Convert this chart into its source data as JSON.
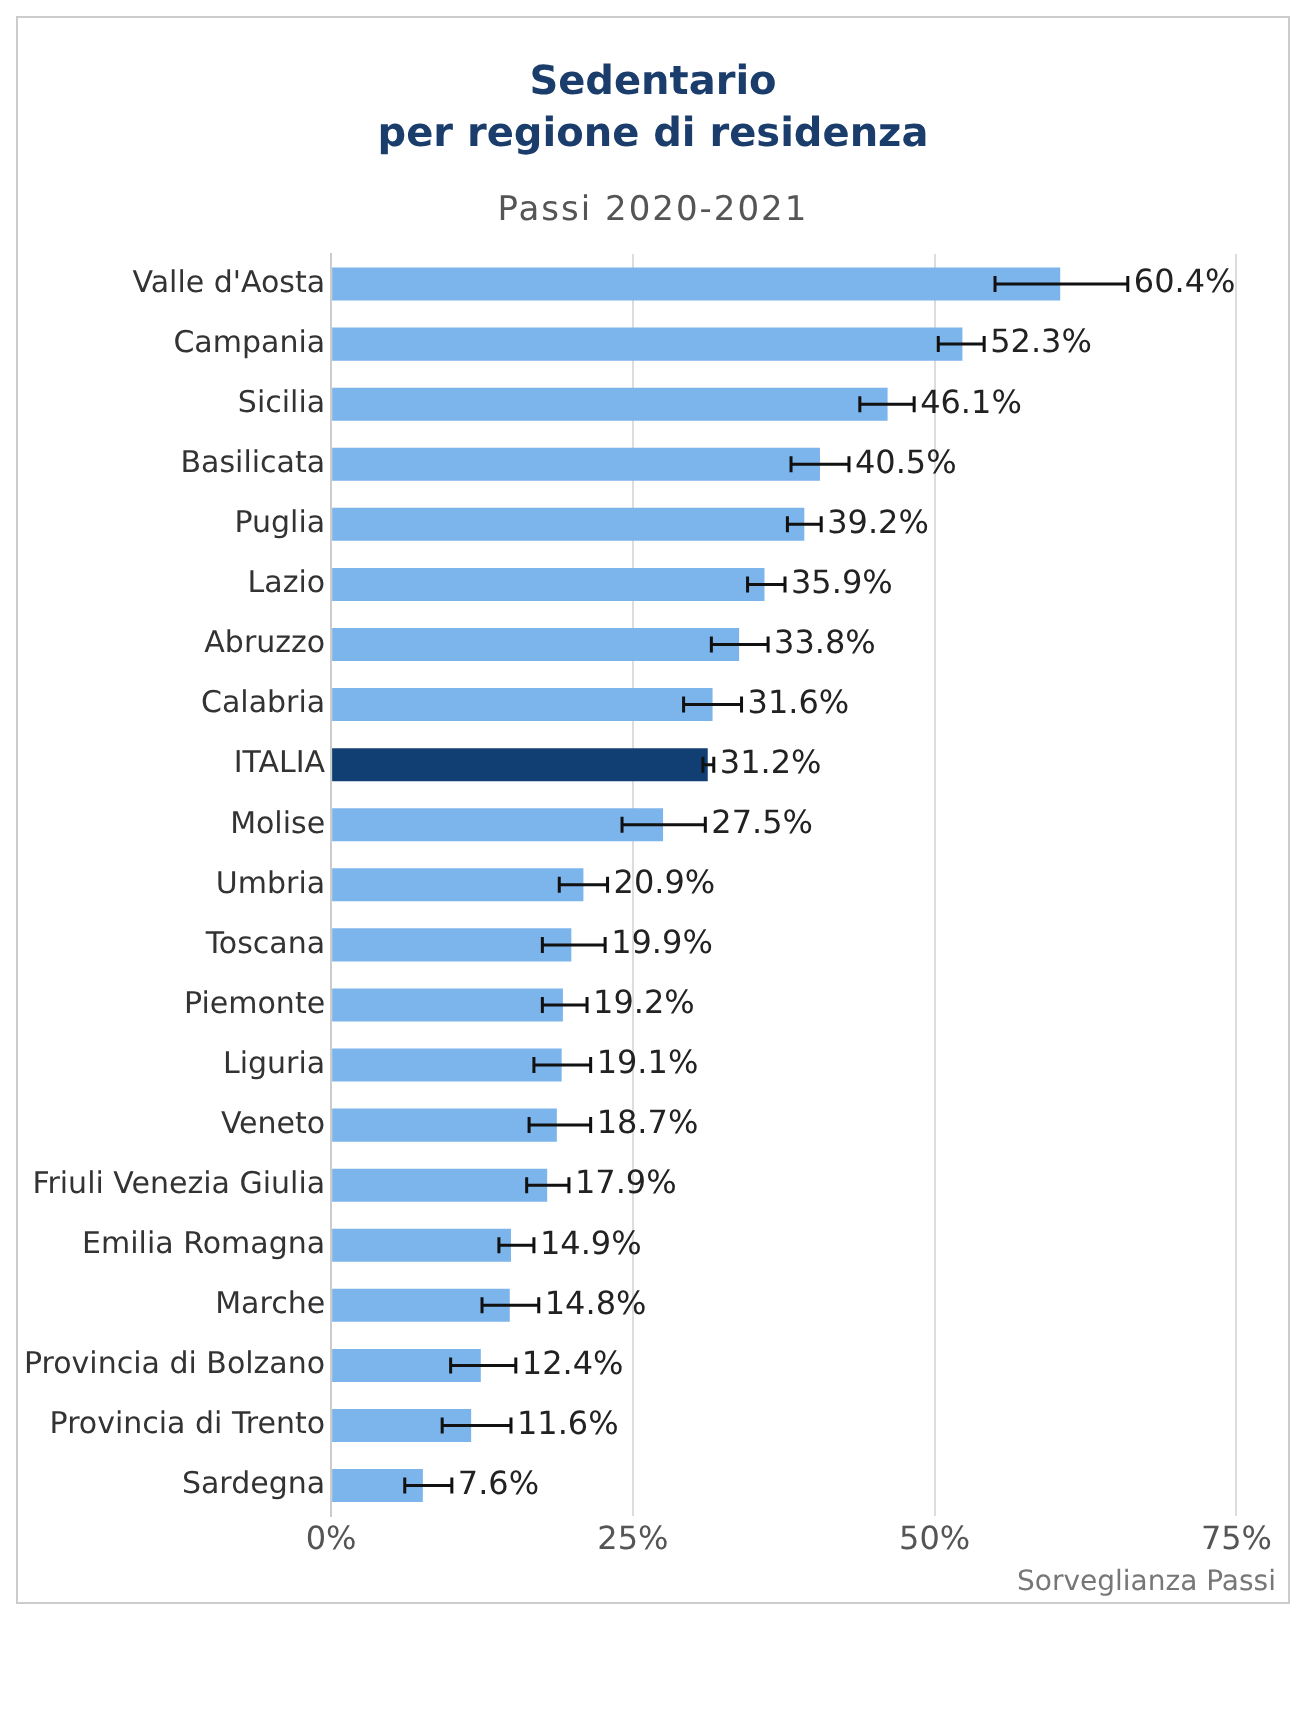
{
  "chart_data": {
    "type": "bar",
    "orientation": "horizontal",
    "title": "Sedentario\nper regione di residenza",
    "subtitle": "Passi 2020-2021",
    "categories": [
      "Valle d'Aosta",
      "Campania",
      "Sicilia",
      "Basilicata",
      "Puglia",
      "Lazio",
      "Abruzzo",
      "Calabria",
      "ITALIA",
      "Molise",
      "Umbria",
      "Toscana",
      "Piemonte",
      "Liguria",
      "Veneto",
      "Friuli Venezia Giulia",
      "Emilia Romagna",
      "Marche",
      "Provincia di Bolzano",
      "Provincia di Trento",
      "Sardegna"
    ],
    "values": [
      60.4,
      52.3,
      46.1,
      40.5,
      39.2,
      35.9,
      33.8,
      31.6,
      31.2,
      27.5,
      20.9,
      19.9,
      19.2,
      19.1,
      18.7,
      17.9,
      14.9,
      14.8,
      12.4,
      11.6,
      7.6
    ],
    "colors": [
      "#7cb5ec",
      "#7cb5ec",
      "#7cb5ec",
      "#7cb5ec",
      "#7cb5ec",
      "#7cb5ec",
      "#7cb5ec",
      "#7cb5ec",
      "#123f73",
      "#7cb5ec",
      "#7cb5ec",
      "#7cb5ec",
      "#7cb5ec",
      "#7cb5ec",
      "#7cb5ec",
      "#7cb5ec",
      "#7cb5ec",
      "#7cb5ec",
      "#7cb5ec",
      "#7cb5ec",
      "#7cb5ec"
    ],
    "errors": [
      [
        55,
        66
      ],
      [
        50.3,
        54.1
      ],
      [
        43.8,
        48.3
      ],
      [
        38.1,
        42.9
      ],
      [
        37.8,
        40.6
      ],
      [
        34.5,
        37.6
      ],
      [
        31.5,
        36.2
      ],
      [
        29.2,
        34
      ],
      [
        30.8,
        31.7
      ],
      [
        24.1,
        31
      ],
      [
        18.9,
        22.9
      ],
      [
        17.5,
        22.7
      ],
      [
        17.5,
        21.2
      ],
      [
        16.8,
        21.5
      ],
      [
        16.4,
        21.5
      ],
      [
        16.2,
        19.7
      ],
      [
        13.9,
        16.8
      ],
      [
        12.5,
        17.2
      ],
      [
        9.9,
        15.3
      ],
      [
        9.2,
        14.9
      ],
      [
        6.1,
        10
      ]
    ],
    "value_labels": [
      "60.4%",
      "52.3%",
      "46.1%",
      "40.5%",
      "39.2%",
      "35.9%",
      "33.8%",
      "31.6%",
      "31.2%",
      "27.5%",
      "20.9%",
      "19.9%",
      "19.2%",
      "19.1%",
      "18.7%",
      "17.9%",
      "14.9%",
      "14.8%",
      "12.4%",
      "11.6%",
      "7.6%"
    ],
    "xlim": [
      0,
      75
    ],
    "xticks": [
      {
        "value": 0,
        "label": "0%"
      },
      {
        "value": 25,
        "label": "25%"
      },
      {
        "value": 50,
        "label": "50%"
      },
      {
        "value": 75,
        "label": "75%"
      }
    ],
    "grid": "x",
    "legend": false,
    "annotations": [
      "Sorveglianza Passi"
    ]
  }
}
